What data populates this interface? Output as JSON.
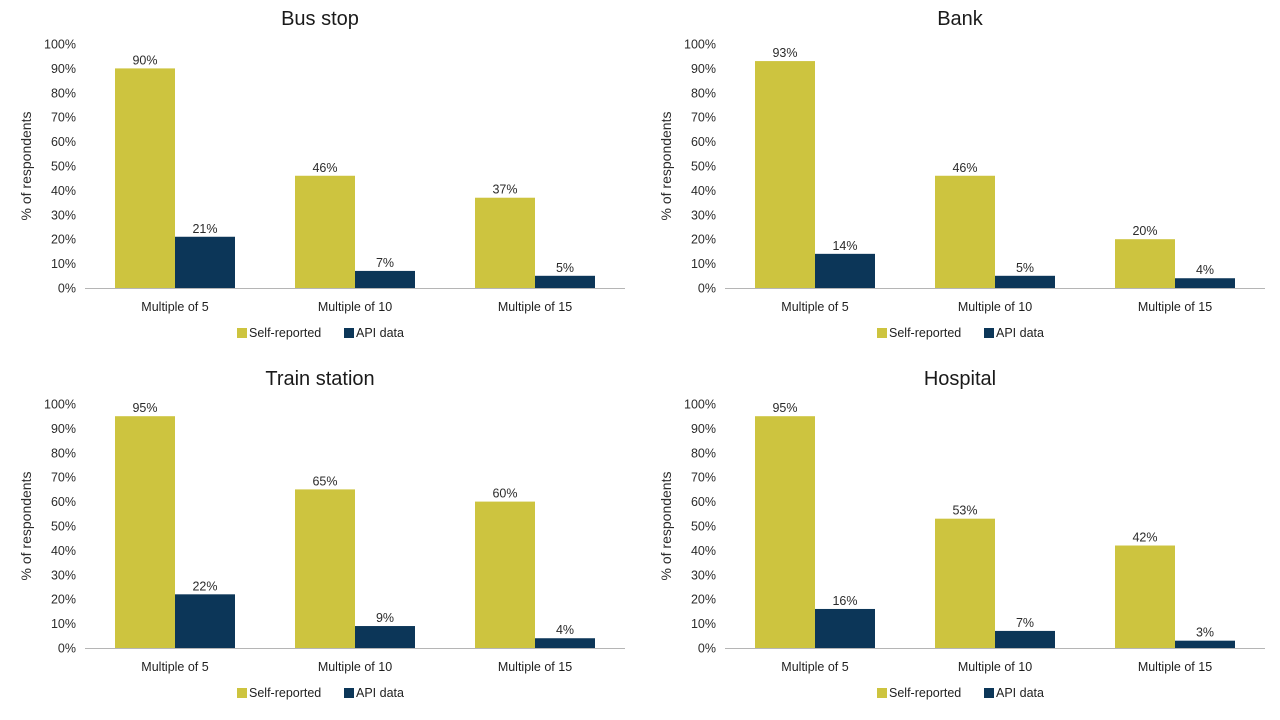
{
  "chart_data": [
    {
      "type": "bar",
      "title": "Bus stop",
      "xlabel": "",
      "ylabel": "% of respondents",
      "ylim": [
        0,
        100
      ],
      "yticks": [
        "0%",
        "10%",
        "20%",
        "30%",
        "40%",
        "50%",
        "60%",
        "70%",
        "80%",
        "90%",
        "100%"
      ],
      "categories": [
        "Multiple of 5",
        "Multiple of 10",
        "Multiple of 15"
      ],
      "series": [
        {
          "name": "Self-reported",
          "color": "#cdc43f",
          "values": [
            90,
            46,
            37
          ],
          "labels": [
            "90%",
            "46%",
            "37%"
          ]
        },
        {
          "name": "API data",
          "color": "#0c3658",
          "values": [
            21,
            7,
            5
          ],
          "labels": [
            "21%",
            "7%",
            "5%"
          ]
        }
      ],
      "legend": "bottom",
      "grid": false
    },
    {
      "type": "bar",
      "title": "Bank",
      "xlabel": "",
      "ylabel": "% of respondents",
      "ylim": [
        0,
        100
      ],
      "yticks": [
        "0%",
        "10%",
        "20%",
        "30%",
        "40%",
        "50%",
        "60%",
        "70%",
        "80%",
        "90%",
        "100%"
      ],
      "categories": [
        "Multiple of 5",
        "Multiple of 10",
        "Multiple of 15"
      ],
      "series": [
        {
          "name": "Self-reported",
          "color": "#cdc43f",
          "values": [
            93,
            46,
            20
          ],
          "labels": [
            "93%",
            "46%",
            "20%"
          ]
        },
        {
          "name": "API data",
          "color": "#0c3658",
          "values": [
            14,
            5,
            4
          ],
          "labels": [
            "14%",
            "5%",
            "4%"
          ]
        }
      ],
      "legend": "bottom",
      "grid": false
    },
    {
      "type": "bar",
      "title": "Train station",
      "xlabel": "",
      "ylabel": "% of respondents",
      "ylim": [
        0,
        100
      ],
      "yticks": [
        "0%",
        "10%",
        "20%",
        "30%",
        "40%",
        "50%",
        "60%",
        "70%",
        "80%",
        "90%",
        "100%"
      ],
      "categories": [
        "Multiple of 5",
        "Multiple of 10",
        "Multiple of 15"
      ],
      "series": [
        {
          "name": "Self-reported",
          "color": "#cdc43f",
          "values": [
            95,
            65,
            60
          ],
          "labels": [
            "95%",
            "65%",
            "60%"
          ]
        },
        {
          "name": "API data",
          "color": "#0c3658",
          "values": [
            22,
            9,
            4
          ],
          "labels": [
            "22%",
            "9%",
            "4%"
          ]
        }
      ],
      "legend": "bottom",
      "grid": false
    },
    {
      "type": "bar",
      "title": "Hospital",
      "xlabel": "",
      "ylabel": "% of respondents",
      "ylim": [
        0,
        100
      ],
      "yticks": [
        "0%",
        "10%",
        "20%",
        "30%",
        "40%",
        "50%",
        "60%",
        "70%",
        "80%",
        "90%",
        "100%"
      ],
      "categories": [
        "Multiple of 5",
        "Multiple of 10",
        "Multiple of 15"
      ],
      "series": [
        {
          "name": "Self-reported",
          "color": "#cdc43f",
          "values": [
            95,
            53,
            42
          ],
          "labels": [
            "95%",
            "53%",
            "42%"
          ]
        },
        {
          "name": "API data",
          "color": "#0c3658",
          "values": [
            16,
            7,
            3
          ],
          "labels": [
            "16%",
            "7%",
            "3%"
          ]
        }
      ],
      "legend": "bottom",
      "grid": false
    }
  ]
}
